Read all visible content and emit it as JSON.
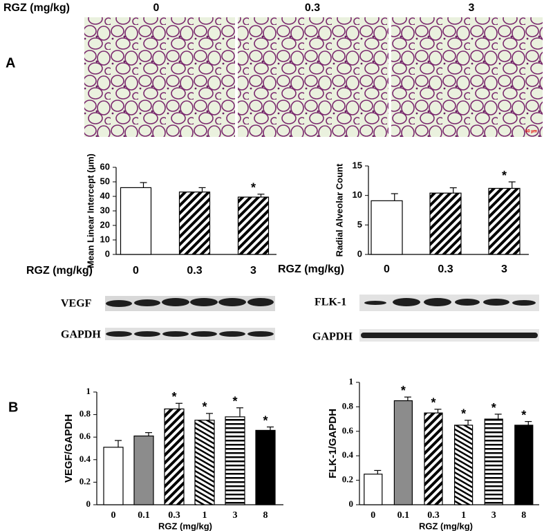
{
  "header": {
    "dose_label": "RGZ (mg/kg)",
    "doses": [
      "0",
      "0.3",
      "3"
    ]
  },
  "panels": [
    "A",
    "B"
  ],
  "scale_bar": "50 µm",
  "blots": {
    "left": [
      "VEGF",
      "GAPDH"
    ],
    "right": [
      "FLK-1",
      "GAPDH"
    ]
  },
  "chart_data": [
    {
      "type": "bar",
      "ylabel": "Mean Linear Intercept (µm)",
      "xlabel": "RGZ (mg/kg)",
      "categories": [
        "0",
        "0.3",
        "3"
      ],
      "values": [
        46,
        43,
        39.5
      ],
      "errors": [
        3.5,
        3,
        2
      ],
      "significance": [
        null,
        null,
        "*"
      ],
      "fills": [
        "white",
        "hatch-diag",
        "hatch-diag"
      ],
      "ylim": [
        0,
        60
      ],
      "yticks": [
        0,
        10,
        20,
        30,
        40,
        50,
        60
      ]
    },
    {
      "type": "bar",
      "ylabel": "Radial Alveolar Count",
      "xlabel": "RGZ (mg/kg)",
      "categories": [
        "0",
        "0.3",
        "3"
      ],
      "values": [
        9.1,
        10.4,
        11.2
      ],
      "errors": [
        1.2,
        0.9,
        1.1
      ],
      "significance": [
        null,
        null,
        "*"
      ],
      "fills": [
        "white",
        "hatch-diag",
        "hatch-diag"
      ],
      "ylim": [
        0,
        15
      ],
      "yticks": [
        0,
        5,
        10,
        15
      ]
    },
    {
      "type": "bar",
      "ylabel": "VEGF/GAPDH",
      "xlabel": "RGZ (mg/kg)",
      "categories": [
        "0",
        "0.1",
        "0.3",
        "1",
        "3",
        "8"
      ],
      "values": [
        0.51,
        0.61,
        0.85,
        0.75,
        0.78,
        0.66
      ],
      "errors": [
        0.06,
        0.03,
        0.05,
        0.06,
        0.08,
        0.03
      ],
      "significance": [
        null,
        null,
        "*",
        "*",
        "*",
        "*"
      ],
      "fills": [
        "white",
        "#8c8c8c",
        "hatch-diag",
        "hatch-back",
        "hatch-horiz",
        "black"
      ],
      "ylim": [
        0,
        1
      ],
      "yticks": [
        0,
        0.2,
        0.4,
        0.6,
        0.8,
        1
      ]
    },
    {
      "type": "bar",
      "ylabel": "FLK-1/GAPDH",
      "xlabel": "RGZ (mg/kg)",
      "categories": [
        "0",
        "0.1",
        "0.3",
        "1",
        "3",
        "8"
      ],
      "values": [
        0.25,
        0.85,
        0.75,
        0.65,
        0.7,
        0.65
      ],
      "errors": [
        0.03,
        0.03,
        0.03,
        0.04,
        0.04,
        0.03
      ],
      "significance": [
        null,
        "*",
        "*",
        "*",
        "*",
        "*"
      ],
      "fills": [
        "white",
        "#8c8c8c",
        "hatch-diag",
        "hatch-back",
        "hatch-horiz",
        "black"
      ],
      "ylim": [
        0,
        1
      ],
      "yticks": [
        0,
        0.2,
        0.4,
        0.6,
        0.8,
        1
      ]
    }
  ]
}
